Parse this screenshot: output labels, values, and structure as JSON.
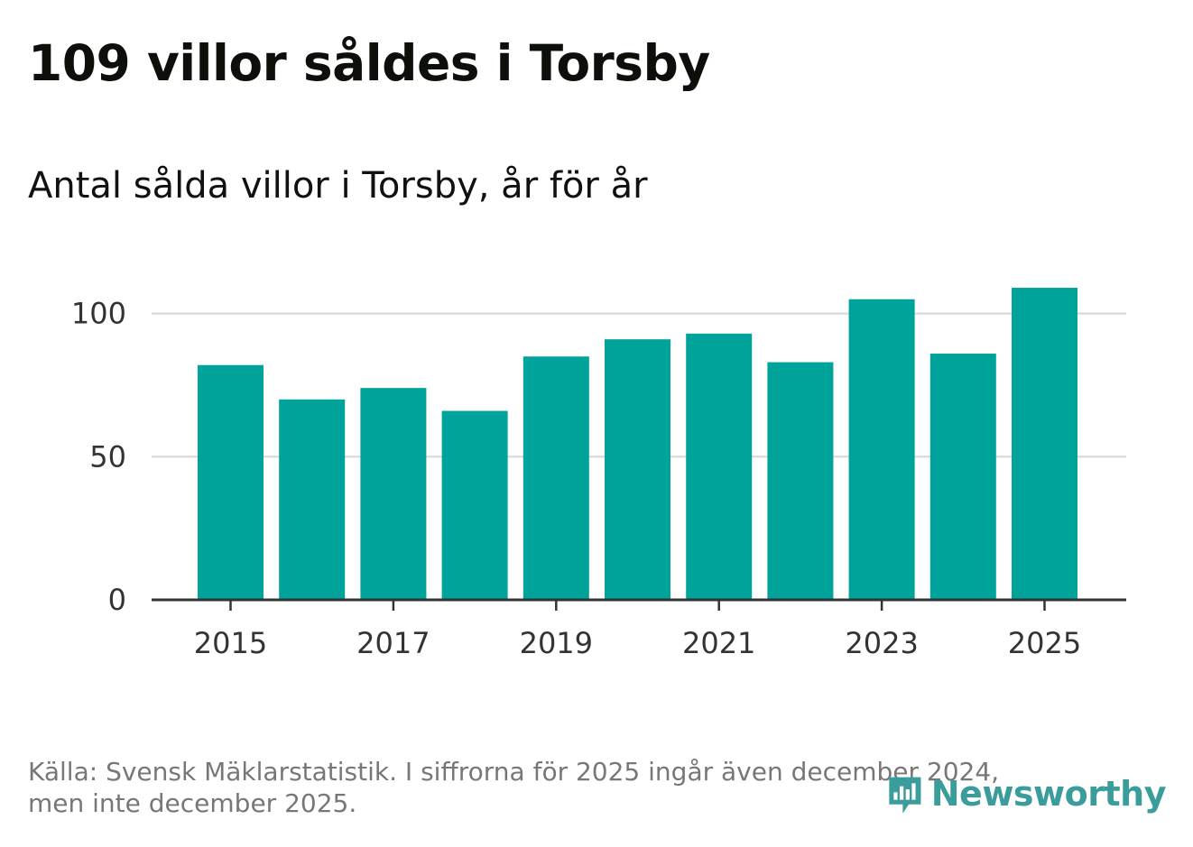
{
  "title": "109 villor såldes i Torsby",
  "subtitle": "Antal sålda villor i Torsby, år för år",
  "footer": {
    "line1": "Källa: Svensk Mäklarstatistik. I siffrorna för 2025 ingår även december 2024,",
    "line2": "men inte december 2025."
  },
  "logo": {
    "text": "Newsworthy",
    "icon": "newsworthy-logo-icon"
  },
  "colors": {
    "bar": "#00a39a",
    "grid": "#dddddd",
    "axis": "#333333",
    "logo": "#3a9d9b"
  },
  "chart_data": {
    "type": "bar",
    "title": "Antal sålda villor i Torsby, år för år",
    "xlabel": "",
    "ylabel": "",
    "categories": [
      "2015",
      "2016",
      "2017",
      "2018",
      "2019",
      "2020",
      "2021",
      "2022",
      "2023",
      "2024",
      "2025"
    ],
    "values": [
      82,
      70,
      74,
      66,
      85,
      91,
      93,
      83,
      105,
      86,
      109
    ],
    "ylim": [
      0,
      115
    ],
    "yticks": [
      0,
      50,
      100
    ],
    "xtick_labels": [
      "2015",
      "2017",
      "2019",
      "2021",
      "2023",
      "2025"
    ],
    "grid": true,
    "legend": "none"
  }
}
